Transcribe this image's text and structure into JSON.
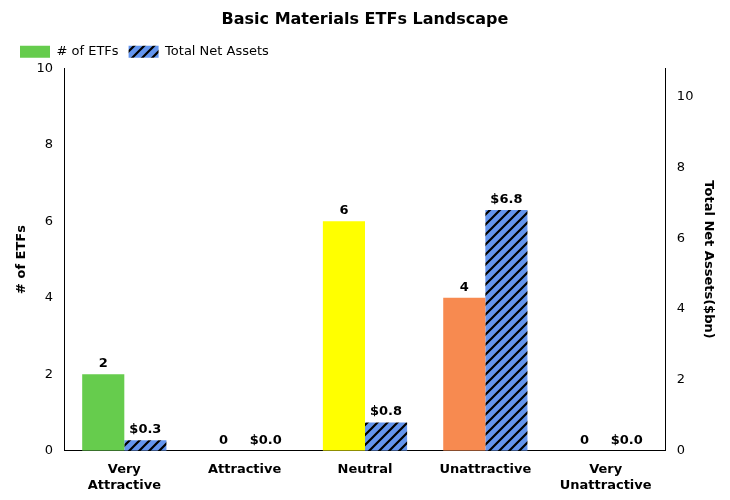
{
  "chart_data": {
    "type": "bar",
    "title": "Basic Materials ETFs Landscape",
    "categories": [
      "Very Attractive",
      "Attractive",
      "Neutral",
      "Unattractive",
      "Very Unattractive"
    ],
    "y_label": "# of ETFs",
    "y2_label": "Total Net Assets($bn)",
    "series": [
      {
        "name": "# of ETFs",
        "colors": [
          "#66cc4d",
          "#9acd32",
          "#ffff00",
          "#f78a50",
          "#ff3333"
        ],
        "values": [
          2,
          0,
          6,
          4,
          0
        ]
      },
      {
        "name": "Total Net Assets",
        "color": "#6495ed",
        "axis": "y2",
        "values": [
          0.3,
          0,
          0.8,
          6.8,
          0
        ],
        "value_labels": [
          "$0.3",
          "$0.0",
          "$0.8",
          "$6.8",
          "$0.0"
        ]
      }
    ],
    "ylim": [
      0,
      10
    ],
    "yticks": [
      0,
      2,
      4,
      6,
      8,
      10
    ],
    "y2lim": [
      0,
      10.8
    ],
    "y2ticks": [
      0,
      2,
      4,
      6,
      8,
      10
    ],
    "grid": false,
    "legend": "upper left",
    "data_labels": true
  }
}
